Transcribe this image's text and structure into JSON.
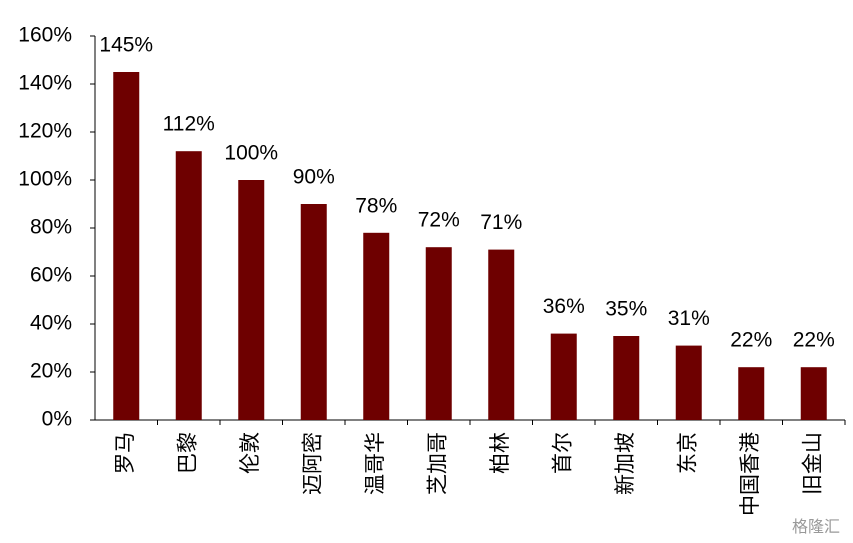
{
  "chart_data": {
    "type": "bar",
    "categories": [
      "罗马",
      "巴黎",
      "伦敦",
      "迈阿密",
      "温哥华",
      "芝加哥",
      "柏林",
      "首尔",
      "新加坡",
      "东京",
      "中国香港",
      "旧金山"
    ],
    "values": [
      145,
      112,
      100,
      90,
      78,
      72,
      71,
      36,
      35,
      31,
      22,
      22
    ],
    "value_labels": [
      "145%",
      "112%",
      "100%",
      "90%",
      "78%",
      "72%",
      "71%",
      "36%",
      "35%",
      "31%",
      "22%",
      "22%"
    ],
    "color": "#6e0000",
    "ylim": [
      0,
      160
    ],
    "yticks": [
      {
        "value": 0,
        "label": "0%"
      },
      {
        "value": 20,
        "label": "20%"
      },
      {
        "value": 40,
        "label": "40%"
      },
      {
        "value": 60,
        "label": "60%"
      },
      {
        "value": 80,
        "label": "80%"
      },
      {
        "value": 100,
        "label": "100%"
      },
      {
        "value": 120,
        "label": "120%"
      },
      {
        "value": 140,
        "label": "140%"
      },
      {
        "value": 160,
        "label": "160%"
      }
    ],
    "grid": false,
    "watermark": "格隆汇"
  }
}
